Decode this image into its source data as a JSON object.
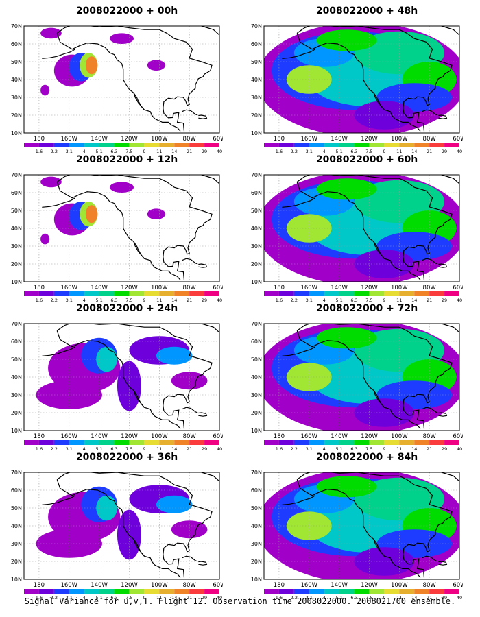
{
  "footer": "Signal Variance for u,v,T. Flight 12. Observation time 2008022000. 2008021700 ensemble.",
  "axis": {
    "lat_labels": [
      "70N",
      "60N",
      "50N",
      "40N",
      "30N",
      "20N",
      "10N"
    ],
    "lat_values": [
      70,
      60,
      50,
      40,
      30,
      20,
      10
    ],
    "lon_labels": [
      "180",
      "160W",
      "140W",
      "120W",
      "100W",
      "80W",
      "60W"
    ],
    "lon_values": [
      -180,
      -160,
      -140,
      -120,
      -100,
      -80,
      -60
    ],
    "lon_range": [
      -190,
      -60
    ],
    "lat_range": [
      10,
      70
    ]
  },
  "colorbar": {
    "labels": [
      "1.6",
      "2.2",
      "3.1",
      "4",
      "5.1",
      "6.3",
      "7.5",
      "9",
      "11",
      "14",
      "21",
      "29",
      "40"
    ],
    "colors": [
      "#a000c8",
      "#6e00dc",
      "#1e3cff",
      "#0096ff",
      "#00c8c8",
      "#00d28c",
      "#00dc00",
      "#a0e632",
      "#e6dc32",
      "#e6af2d",
      "#f08228",
      "#fa3c3c",
      "#f00082"
    ]
  },
  "panels": [
    {
      "title": "2008022000 + 00h",
      "coverage": "low"
    },
    {
      "title": "2008022000 + 12h",
      "coverage": "low"
    },
    {
      "title": "2008022000 + 24h",
      "coverage": "medium"
    },
    {
      "title": "2008022000 + 36h",
      "coverage": "medium"
    },
    {
      "title": "2008022000 + 48h",
      "coverage": "high"
    },
    {
      "title": "2008022000 + 60h",
      "coverage": "high"
    },
    {
      "title": "2008022000 + 72h",
      "coverage": "high"
    },
    {
      "title": "2008022000 + 84h",
      "coverage": "high"
    }
  ]
}
